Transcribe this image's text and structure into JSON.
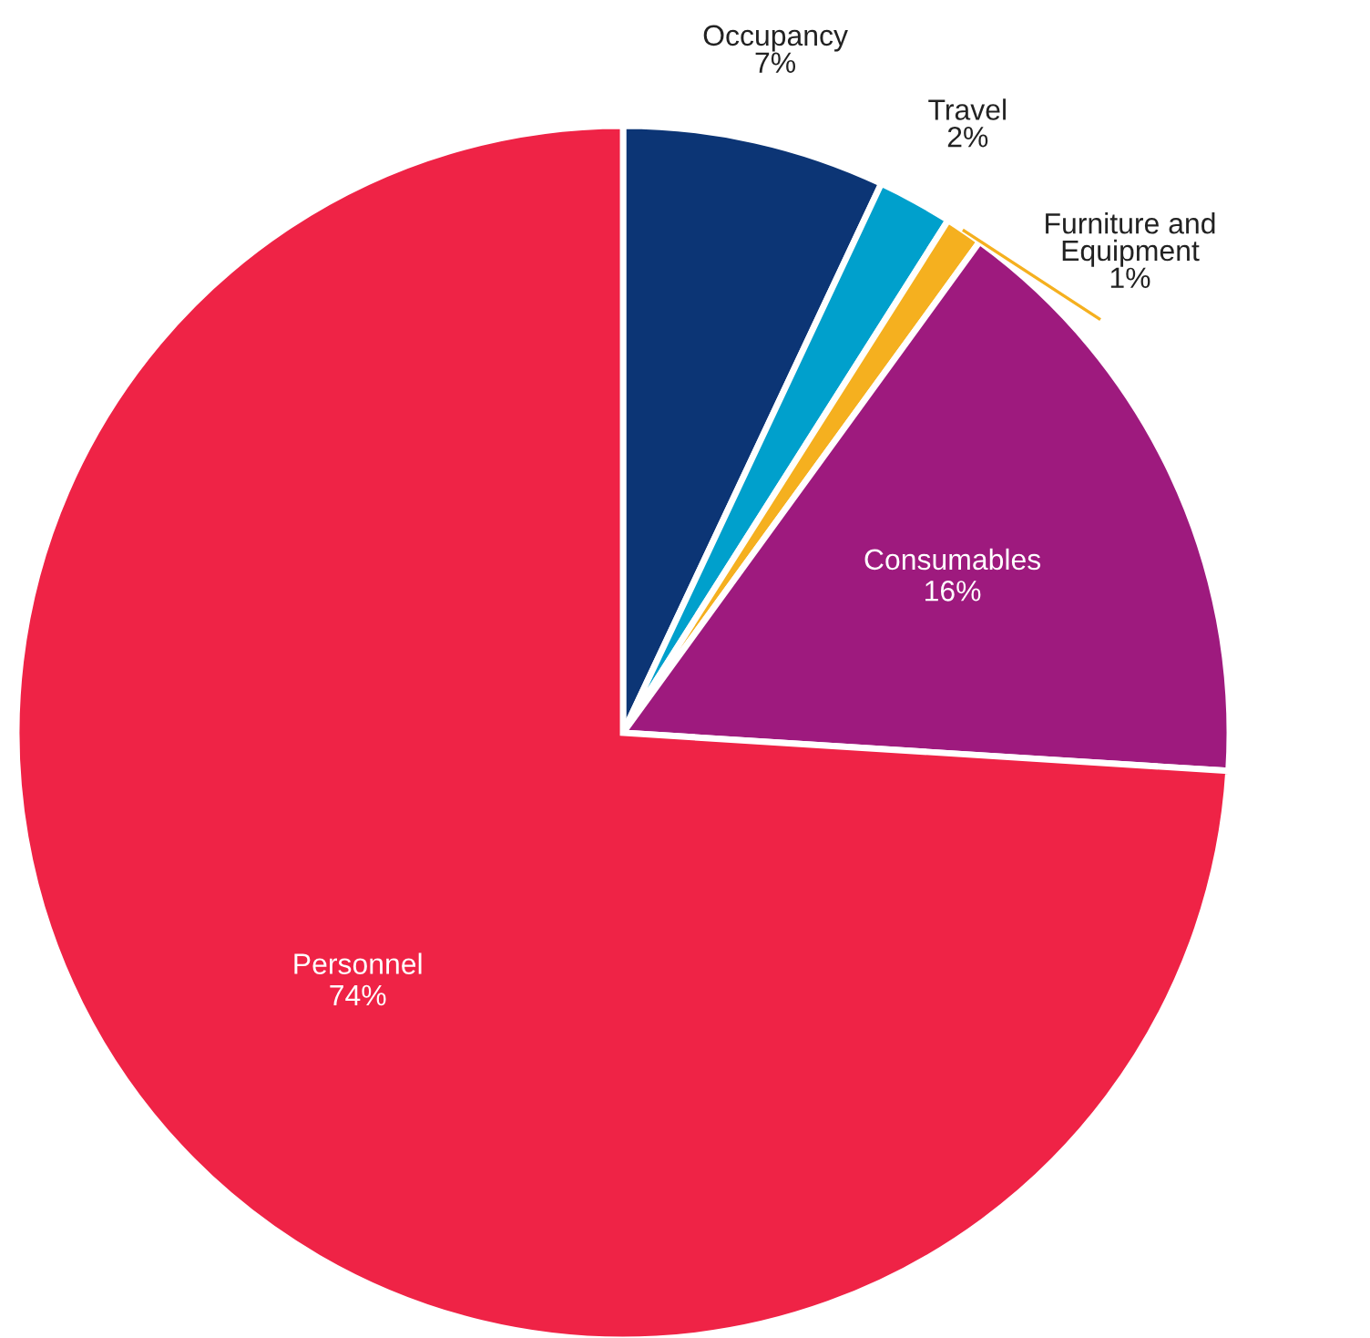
{
  "chart_data": {
    "type": "pie",
    "categories": [
      "Occupancy",
      "Travel",
      "Furniture and Equipment",
      "Consumables",
      "Personnel"
    ],
    "values": [
      7,
      2,
      1,
      16,
      74
    ],
    "colors": [
      "#0c3575",
      "#00a0cc",
      "#f5b01f",
      "#9e1a7e",
      "#ef2346"
    ],
    "value_labels": [
      "7%",
      "2%",
      "1%",
      "16%",
      "74%"
    ],
    "legend": false
  }
}
